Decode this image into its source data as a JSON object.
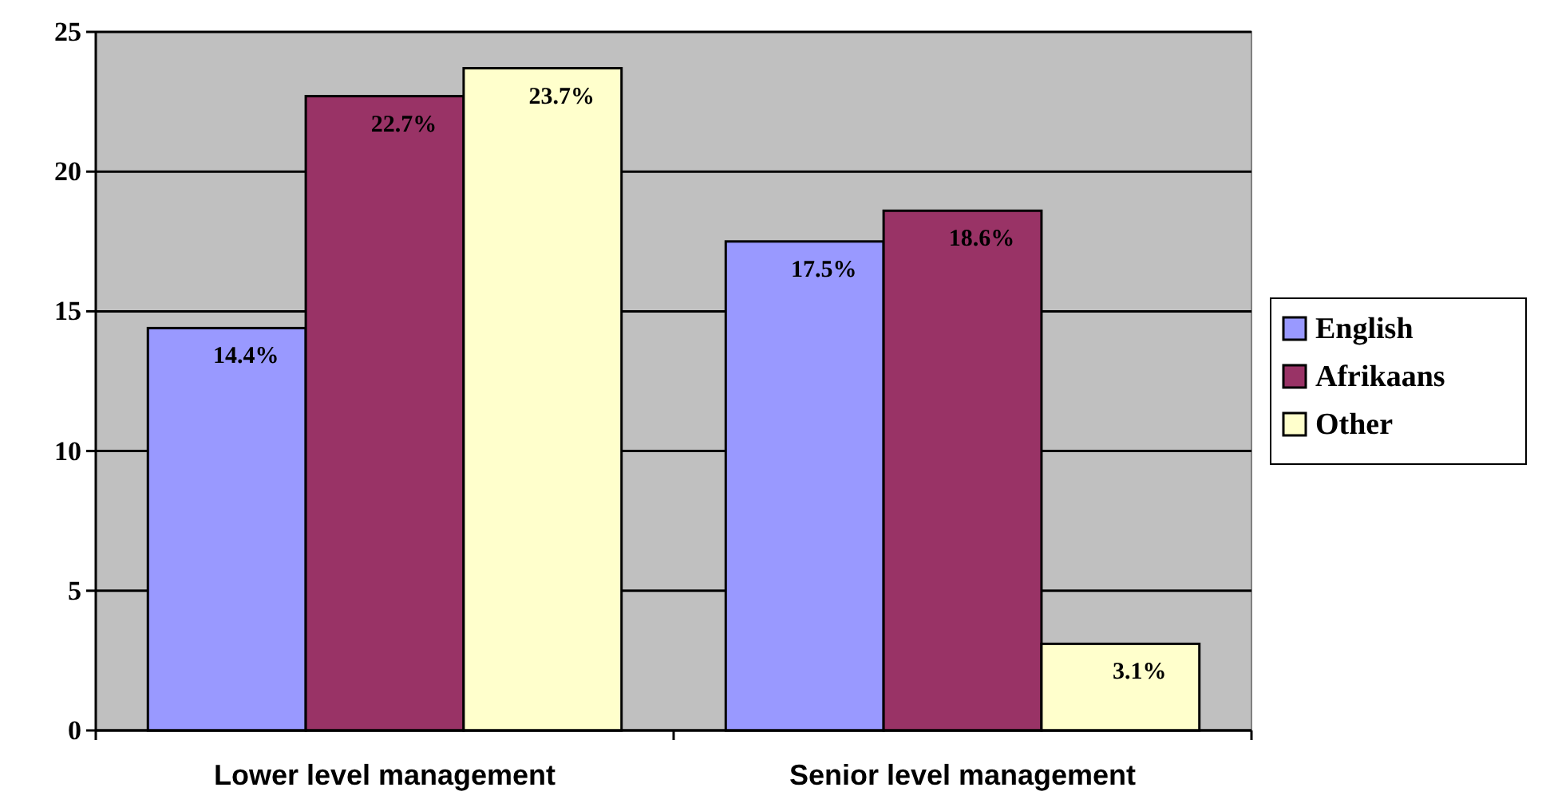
{
  "chart_data": {
    "type": "bar",
    "categories": [
      "Lower level management",
      "Senior level management"
    ],
    "series": [
      {
        "name": "English",
        "color": "#9999ff",
        "values": [
          14.4,
          17.5
        ],
        "value_labels": [
          "14.4%",
          "17.5%"
        ]
      },
      {
        "name": "Afrikaans",
        "color": "#993366",
        "values": [
          22.7,
          18.6
        ],
        "value_labels": [
          "22.7%",
          "18.6%"
        ]
      },
      {
        "name": "Other",
        "color": "#ffffcc",
        "values": [
          23.7,
          3.1
        ],
        "value_labels": [
          "23.7%",
          "3.1%"
        ]
      }
    ],
    "ylim": [
      0,
      25
    ],
    "yticks": [
      0,
      5,
      10,
      15,
      20,
      25
    ],
    "grid": "y",
    "legend": "right"
  }
}
